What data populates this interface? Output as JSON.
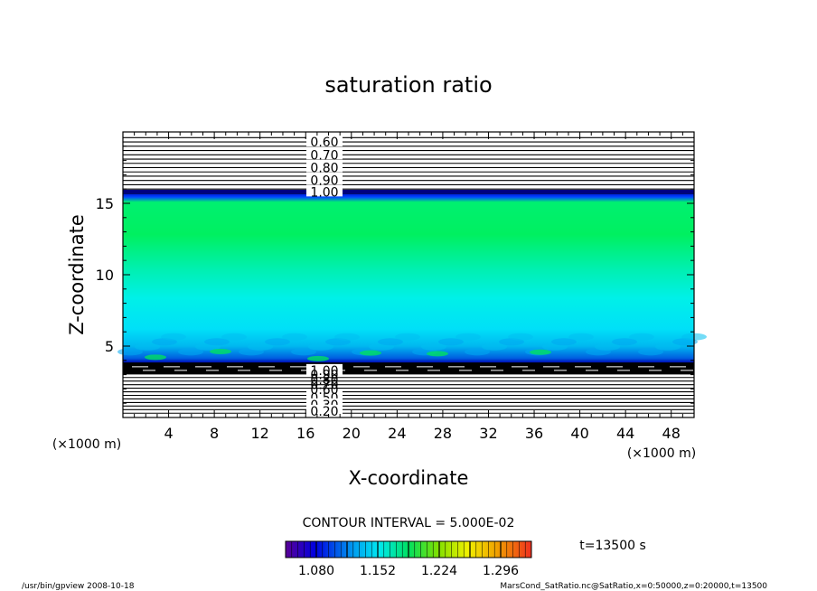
{
  "chart_data": {
    "type": "heatmap",
    "title": "saturation ratio",
    "xlabel": "X-coordinate",
    "ylabel": "Z-coordinate",
    "x_unit_left": "(×1000 m)",
    "x_unit_right": "(×1000 m)",
    "xlim": [
      0,
      50
    ],
    "ylim": [
      0,
      20
    ],
    "x_ticks": [
      4,
      8,
      12,
      16,
      20,
      24,
      28,
      32,
      36,
      40,
      44,
      48
    ],
    "y_ticks": [
      5,
      10,
      15
    ],
    "contour_labels_upper": [
      "0.60",
      "0.70",
      "0.80",
      "0.90",
      "1.00"
    ],
    "contour_labels_lower": [
      "1.00",
      "0.50",
      "0.30",
      "0.20"
    ],
    "contour_interval_text": "CONTOUR INTERVAL = 5.000E-02",
    "time_label": "t=13500 s",
    "colorbar_ticks": [
      "1.080",
      "1.152",
      "1.224",
      "1.296"
    ],
    "colorbar_range": [
      1.044,
      1.332
    ],
    "field_layers": [
      {
        "z_min": 0,
        "z_max": 3.8,
        "region": "contour-lines (below 1.0)"
      },
      {
        "z_min": 3.8,
        "z_max": 6.2,
        "value_approx": 1.12
      },
      {
        "z_min": 6.2,
        "z_max": 12.0,
        "value_approx": 1.17
      },
      {
        "z_min": 12.0,
        "z_max": 15.0,
        "value_approx": 1.2
      },
      {
        "z_min": 15.0,
        "z_max": 15.8,
        "value_approx": 1.06
      },
      {
        "z_min": 15.8,
        "z_max": 20,
        "region": "contour-lines (below 1.0)"
      }
    ]
  },
  "footer": {
    "program": "/usr/bin/gpview   2008-10-18",
    "source": "MarsCond_SatRatio.nc@SatRatio,x=0:50000,z=0:20000,t=13500"
  },
  "colors": {
    "background": "#ffffff",
    "axis": "#000000",
    "band_top_dark": "#0000b0",
    "band_green": "#00ee60",
    "band_cyan": "#00e8f0",
    "band_lower_cyan": "#00c8f0"
  }
}
